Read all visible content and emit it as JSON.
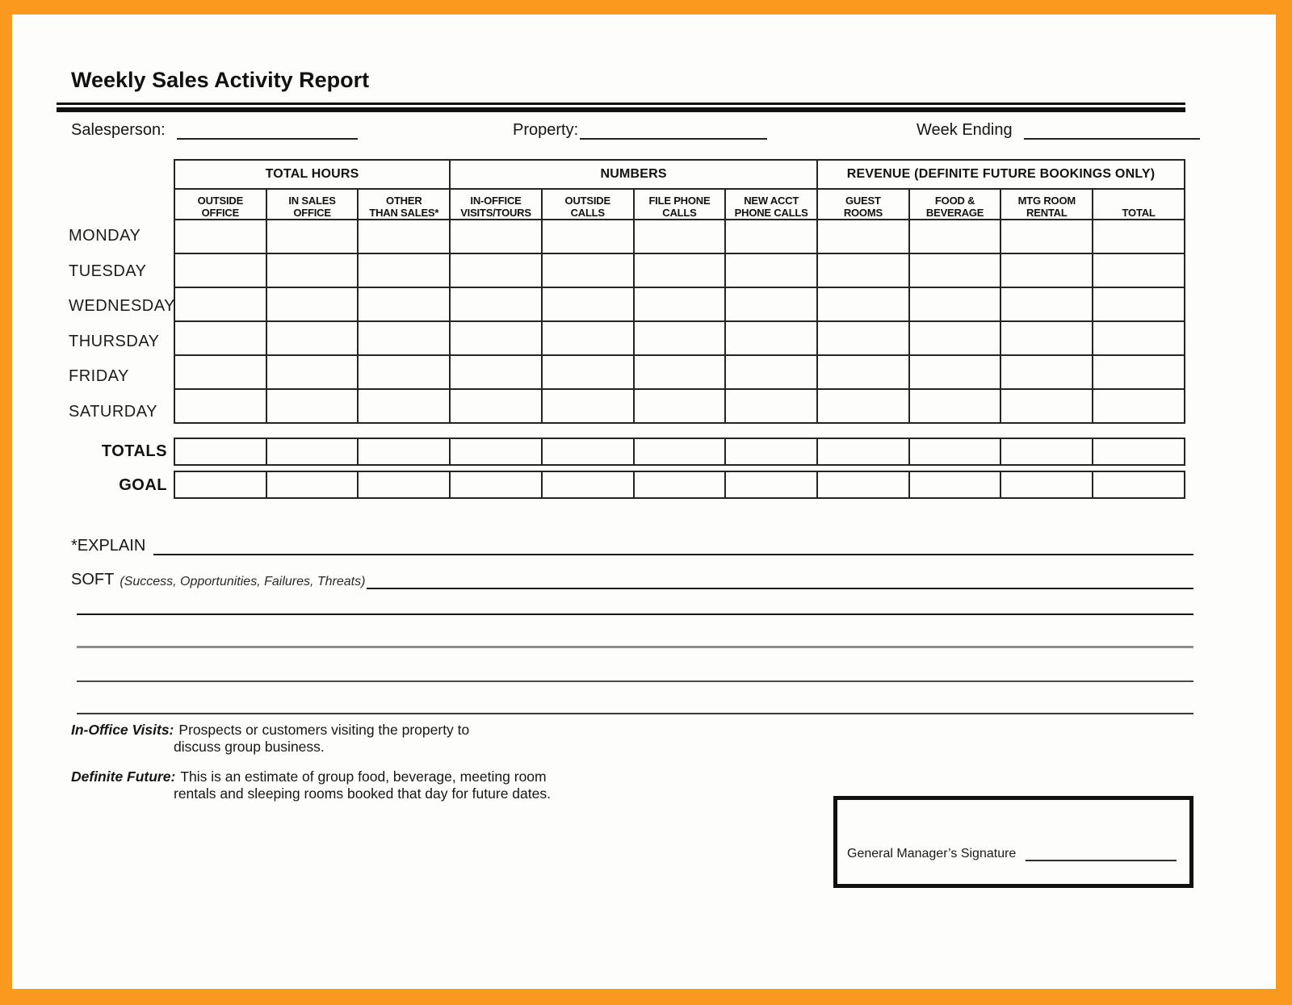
{
  "page": {
    "title": "Weekly Sales Activity Report",
    "accent_color": "#F9991D"
  },
  "header_fields": {
    "salesperson_label": "Salesperson:",
    "property_label": "Property:",
    "week_ending_label": "Week Ending"
  },
  "table": {
    "groups": [
      {
        "label": "TOTAL HOURS",
        "span": 3
      },
      {
        "label": "NUMBERS",
        "span": 4
      },
      {
        "label": "REVENUE (DEFINITE FUTURE BOOKINGS ONLY)",
        "span": 4
      }
    ],
    "columns": [
      {
        "line1": "OUTSIDE",
        "line2": "OFFICE"
      },
      {
        "line1": "IN SALES",
        "line2": "OFFICE"
      },
      {
        "line1": "OTHER",
        "line2": "THAN SALES*"
      },
      {
        "line1": "IN-OFFICE",
        "line2": "VISITS/TOURS"
      },
      {
        "line1": "OUTSIDE",
        "line2": "CALLS"
      },
      {
        "line1": "FILE PHONE",
        "line2": "CALLS"
      },
      {
        "line1": "NEW ACCT",
        "line2": "PHONE CALLS"
      },
      {
        "line1": "GUEST",
        "line2": "ROOMS"
      },
      {
        "line1": "FOOD &",
        "line2": "BEVERAGE"
      },
      {
        "line1": "MTG ROOM",
        "line2": "RENTAL"
      },
      {
        "line1": "",
        "line2": "TOTAL"
      }
    ],
    "day_rows": [
      "MONDAY",
      "TUESDAY",
      "WEDNESDAY",
      "THURSDAY",
      "FRIDAY",
      "SATURDAY"
    ],
    "totals_label": "TOTALS",
    "goal_label": "GOAL"
  },
  "explain": {
    "label": "*EXPLAIN"
  },
  "soft": {
    "label": "SOFT",
    "qualifier": "(Success, Opportunities, Failures, Threats)"
  },
  "definitions": {
    "in_office": {
      "term": "In-Office Visits:",
      "text_line1": "Prospects or customers visiting the property to",
      "text_line2": "discuss group business."
    },
    "definite_future": {
      "term": "Definite Future:",
      "text_line1": "This is an estimate of group food, beverage, meeting room",
      "text_line2": "rentals and sleeping rooms booked that day for future dates."
    }
  },
  "signature": {
    "label": "General Manager’s Signature"
  }
}
